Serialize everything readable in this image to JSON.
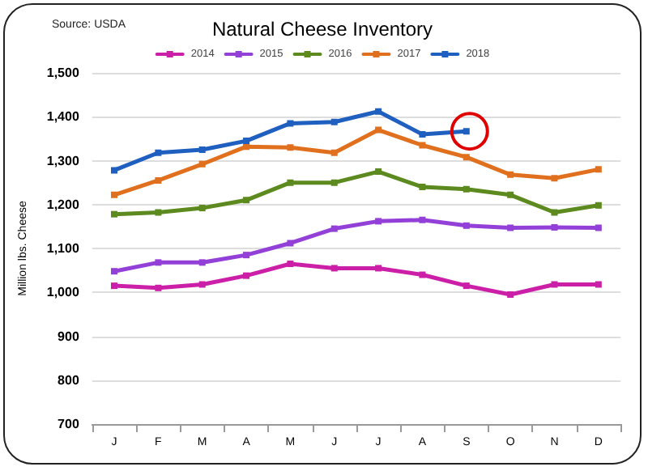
{
  "chart_data": {
    "type": "line",
    "title": "Natural Cheese Inventory",
    "ylabel": "Million lbs. Cheese",
    "annotations": [
      "Source: USDA"
    ],
    "categories": [
      "J",
      "F",
      "M",
      "A",
      "M",
      "J",
      "J",
      "A",
      "S",
      "O",
      "N",
      "D"
    ],
    "series": [
      {
        "name": "2014",
        "color": "#cc1fa8",
        "values": [
          1015,
          1010,
          1018,
          1038,
          1065,
          1055,
          1055,
          1040,
          1015,
          995,
          1018,
          1018
        ]
      },
      {
        "name": "2015",
        "color": "#9340d8",
        "values": [
          1048,
          1068,
          1068,
          1085,
          1112,
          1145,
          1162,
          1165,
          1152,
          1147,
          1148,
          1147
        ]
      },
      {
        "name": "2016",
        "color": "#5c8a1e",
        "values": [
          1178,
          1182,
          1192,
          1210,
          1250,
          1250,
          1275,
          1240,
          1235,
          1222,
          1182,
          1198
        ]
      },
      {
        "name": "2017",
        "color": "#e0701e",
        "values": [
          1222,
          1255,
          1292,
          1332,
          1330,
          1318,
          1370,
          1335,
          1308,
          1268,
          1260,
          1280
        ]
      },
      {
        "name": "2018",
        "color": "#1f5fbf",
        "values": [
          1278,
          1318,
          1325,
          1345,
          1385,
          1388,
          1412,
          1360,
          1367,
          null,
          null,
          null
        ]
      }
    ],
    "ylim": [
      700,
      1500
    ],
    "yticks": [
      {
        "value": 700,
        "label": "700"
      },
      {
        "value": 800,
        "label": "800"
      },
      {
        "value": 900,
        "label": "900"
      },
      {
        "value": 1000,
        "label": "1,000"
      },
      {
        "value": 1100,
        "label": "1,100"
      },
      {
        "value": 1200,
        "label": "1,200"
      },
      {
        "value": 1300,
        "label": "1,300"
      },
      {
        "value": 1400,
        "label": "1,400"
      },
      {
        "value": 1500,
        "label": "1,500"
      }
    ],
    "grid": "y",
    "legend": "top",
    "marker": "square",
    "line_style": "solid"
  }
}
